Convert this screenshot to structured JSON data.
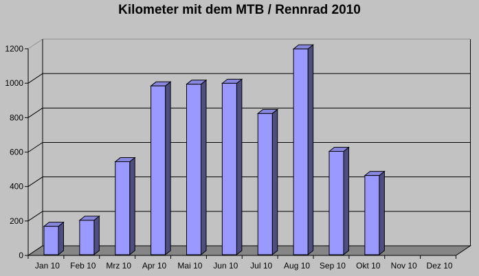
{
  "chart_data": {
    "type": "bar",
    "style": "3d-column",
    "title": "Kilometer mit dem MTB / Rennrad 2010",
    "xlabel": "",
    "ylabel": "",
    "categories": [
      "Jan 10",
      "Feb 10",
      "Mrz 10",
      "Apr 10",
      "Mai 10",
      "Jun 10",
      "Jul 10",
      "Aug 10",
      "Sep 10",
      "Okt 10",
      "Nov 10",
      "Dez 10"
    ],
    "values": [
      165,
      200,
      540,
      980,
      990,
      995,
      820,
      1195,
      600,
      460,
      0,
      0
    ],
    "ylim": [
      0,
      1200
    ],
    "yticks": [
      0,
      200,
      400,
      600,
      800,
      1000,
      1200
    ],
    "grid": true,
    "legend": false,
    "colors": {
      "background": "#C2C2C2",
      "bar_front": "#9999FF",
      "bar_top": "#8787E0",
      "bar_side": "#4E4E80",
      "bar_outline": "#000000",
      "floor": "#868686",
      "gridline": "#000000",
      "wall_edge": "#909090",
      "axis": "#000000",
      "text": "#000000"
    }
  }
}
